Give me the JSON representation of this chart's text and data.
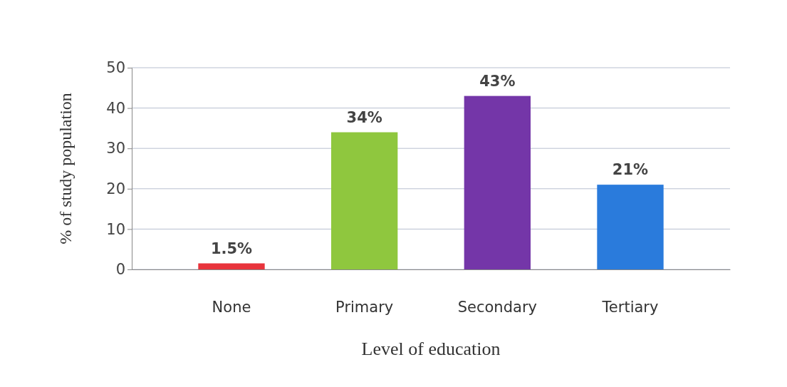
{
  "chart_data": {
    "type": "bar",
    "xlabel": "Level of education",
    "ylabel": "% of study population",
    "categories": [
      "None",
      "Primary",
      "Secondary",
      "Tertiary"
    ],
    "values": [
      1.5,
      34,
      43,
      21
    ],
    "colors": [
      "#e8343c",
      "#8fc73e",
      "#7436a8",
      "#2a7bdc"
    ],
    "value_labels": [
      "1.5%",
      "34%",
      "43%",
      "21%"
    ],
    "ylim": [
      0,
      50
    ],
    "yticks": [
      0,
      10,
      20,
      30,
      40,
      50
    ],
    "grid": "y"
  }
}
